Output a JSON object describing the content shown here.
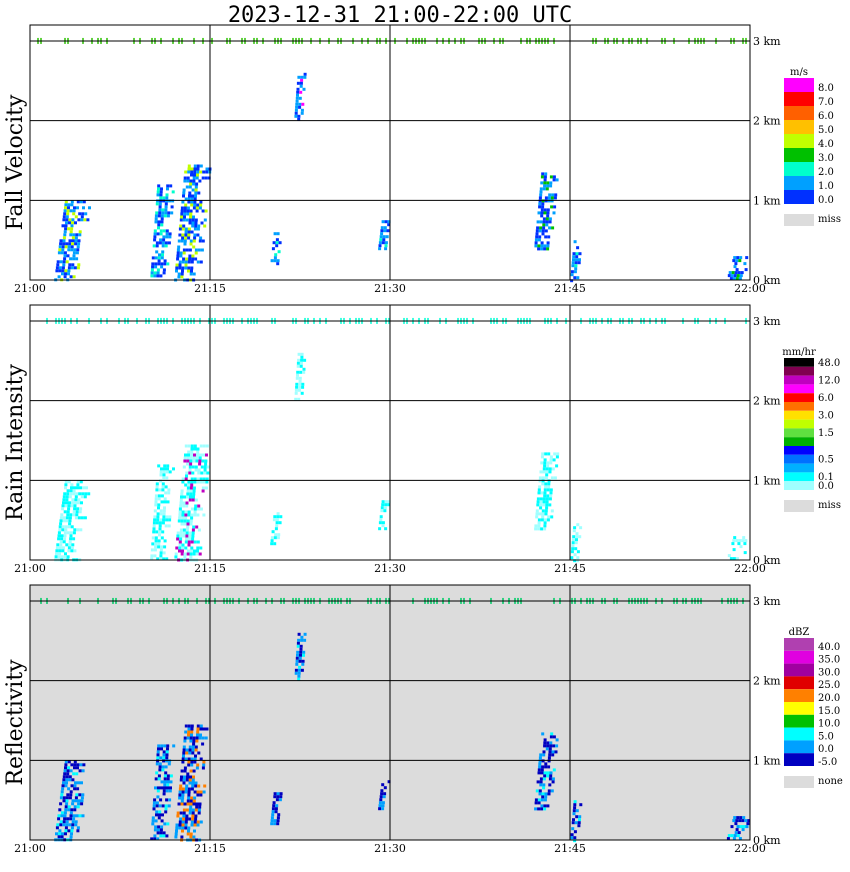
{
  "title": "2023-12-31   21:00-22:00 UTC",
  "x_ticks": [
    "21:00",
    "21:15",
    "21:30",
    "21:45",
    "22:00"
  ],
  "y_ticks": [
    "0 km",
    "1 km",
    "2 km",
    "3 km"
  ],
  "panels": [
    {
      "id": "fall-velocity",
      "ylabel": "Fall Velocity",
      "unit": "m/s",
      "background": "#ffffff",
      "colorbar": [
        {
          "label": "8.0",
          "color": "#ff00ff"
        },
        {
          "label": "7.0",
          "color": "#ff0000"
        },
        {
          "label": "6.0",
          "color": "#ff6000"
        },
        {
          "label": "5.0",
          "color": "#ffc000"
        },
        {
          "label": "4.0",
          "color": "#c0ff00"
        },
        {
          "label": "3.0",
          "color": "#00c000"
        },
        {
          "label": "2.0",
          "color": "#00ffcc"
        },
        {
          "label": "1.0",
          "color": "#00a0ff"
        },
        {
          "label": "0.0",
          "color": "#0030ff"
        }
      ],
      "miss_label": "miss"
    },
    {
      "id": "rain-intensity",
      "ylabel": "Rain Intensity",
      "unit": "mm/hr",
      "background": "#ffffff",
      "colorbar": [
        {
          "label": "48.0",
          "color": "#000000"
        },
        {
          "label": "",
          "color": "#800050"
        },
        {
          "label": "12.0",
          "color": "#c000c0"
        },
        {
          "label": "",
          "color": "#ff00ff"
        },
        {
          "label": "6.0",
          "color": "#ff0000"
        },
        {
          "label": "",
          "color": "#ff7000"
        },
        {
          "label": "3.0",
          "color": "#ffe000"
        },
        {
          "label": "",
          "color": "#c0ff00"
        },
        {
          "label": "1.5",
          "color": "#60e040"
        },
        {
          "label": "",
          "color": "#00b000"
        },
        {
          "label": "",
          "color": "#0000ff"
        },
        {
          "label": "0.5",
          "color": "#0070ff"
        },
        {
          "label": "",
          "color": "#00b0ff"
        },
        {
          "label": "0.1",
          "color": "#00ffff"
        },
        {
          "label": "0.0",
          "color": "#a0ffff"
        }
      ],
      "miss_label": "miss"
    },
    {
      "id": "reflectivity",
      "ylabel": "Reflectivity",
      "unit": "dBZ",
      "background": "#dcdcdc",
      "colorbar": [
        {
          "label": "40.0",
          "color": "#b040b0"
        },
        {
          "label": "35.0",
          "color": "#e000e0"
        },
        {
          "label": "30.0",
          "color": "#a000a0"
        },
        {
          "label": "25.0",
          "color": "#e00000"
        },
        {
          "label": "20.0",
          "color": "#ff8000"
        },
        {
          "label": "15.0",
          "color": "#ffff00"
        },
        {
          "label": "10.0",
          "color": "#00c000"
        },
        {
          "label": "5.0",
          "color": "#00ffff"
        },
        {
          "label": "0.0",
          "color": "#00a0ff"
        },
        {
          "label": "-5.0",
          "color": "#0000c0"
        }
      ],
      "miss_label": "none"
    }
  ],
  "chart_data": [
    {
      "type": "heatmap",
      "title": "2023-12-31   21:00-22:00 UTC",
      "ylabel": "Fall Velocity",
      "unit": "m/s",
      "x_range": [
        "21:00",
        "22:00"
      ],
      "y_range_km": [
        0,
        3.2
      ],
      "echoes": [
        {
          "start": "21:02",
          "end": "21:05",
          "base_km": 0,
          "top_km": 1.0,
          "max_value": 4.0
        },
        {
          "start": "21:10",
          "end": "21:12",
          "base_km": 0,
          "top_km": 1.2,
          "max_value": 2.0
        },
        {
          "start": "21:12",
          "end": "21:15",
          "base_km": 0,
          "top_km": 1.45,
          "max_value": 4.0
        },
        {
          "start": "21:20",
          "end": "21:21",
          "base_km": 0.2,
          "top_km": 0.6,
          "max_value": 2.0
        },
        {
          "start": "21:22",
          "end": "21:23",
          "base_km": 2.0,
          "top_km": 2.6,
          "max_value": 8.0
        },
        {
          "start": "21:29",
          "end": "21:30",
          "base_km": 0.4,
          "top_km": 0.75,
          "max_value": 2.0
        },
        {
          "start": "21:42",
          "end": "21:44",
          "base_km": 0.4,
          "top_km": 1.35,
          "max_value": 3.0
        },
        {
          "start": "21:45",
          "end": "21:46",
          "base_km": 0,
          "top_km": 0.5,
          "max_value": 2.0
        },
        {
          "start": "21:58",
          "end": "22:00",
          "base_km": 0,
          "top_km": 0.3,
          "max_value": 3.0
        }
      ]
    },
    {
      "type": "heatmap",
      "ylabel": "Rain Intensity",
      "unit": "mm/hr",
      "x_range": [
        "21:00",
        "22:00"
      ],
      "y_range_km": [
        0,
        3.2
      ],
      "echoes": [
        {
          "start": "21:02",
          "end": "21:05",
          "base_km": 0,
          "top_km": 1.0,
          "max_value": 0.1
        },
        {
          "start": "21:10",
          "end": "21:12",
          "base_km": 0,
          "top_km": 1.2,
          "max_value": 0.1
        },
        {
          "start": "21:12",
          "end": "21:15",
          "base_km": 0,
          "top_km": 1.45,
          "max_value": 12.0
        },
        {
          "start": "21:20",
          "end": "21:21",
          "base_km": 0.2,
          "top_km": 0.6,
          "max_value": 0.1
        },
        {
          "start": "21:22",
          "end": "21:23",
          "base_km": 2.0,
          "top_km": 2.6,
          "max_value": 0.1
        },
        {
          "start": "21:29",
          "end": "21:30",
          "base_km": 0.4,
          "top_km": 0.75,
          "max_value": 0.1
        },
        {
          "start": "21:42",
          "end": "21:44",
          "base_km": 0.4,
          "top_km": 1.35,
          "max_value": 0.1
        },
        {
          "start": "21:45",
          "end": "21:46",
          "base_km": 0,
          "top_km": 0.5,
          "max_value": 0.1
        },
        {
          "start": "21:58",
          "end": "22:00",
          "base_km": 0,
          "top_km": 0.3,
          "max_value": 0.1
        }
      ]
    },
    {
      "type": "heatmap",
      "ylabel": "Reflectivity",
      "unit": "dBZ",
      "x_range": [
        "21:00",
        "22:00"
      ],
      "y_range_km": [
        0,
        3.2
      ],
      "echoes": [
        {
          "start": "21:02",
          "end": "21:05",
          "base_km": 0,
          "top_km": 1.0,
          "max_value": 5.0
        },
        {
          "start": "21:10",
          "end": "21:12",
          "base_km": 0,
          "top_km": 1.2,
          "max_value": 5.0
        },
        {
          "start": "21:12",
          "end": "21:15",
          "base_km": 0,
          "top_km": 1.45,
          "max_value": 20.0
        },
        {
          "start": "21:20",
          "end": "21:21",
          "base_km": 0.2,
          "top_km": 0.6,
          "max_value": -5.0
        },
        {
          "start": "21:22",
          "end": "21:23",
          "base_km": 2.0,
          "top_km": 2.6,
          "max_value": 5.0
        },
        {
          "start": "21:29",
          "end": "21:30",
          "base_km": 0.4,
          "top_km": 0.75,
          "max_value": 0.0
        },
        {
          "start": "21:42",
          "end": "21:44",
          "base_km": 0.4,
          "top_km": 1.35,
          "max_value": 5.0
        },
        {
          "start": "21:45",
          "end": "21:46",
          "base_km": 0,
          "top_km": 0.5,
          "max_value": 5.0
        },
        {
          "start": "21:58",
          "end": "22:00",
          "base_km": 0,
          "top_km": 0.3,
          "max_value": 5.0
        }
      ]
    }
  ]
}
